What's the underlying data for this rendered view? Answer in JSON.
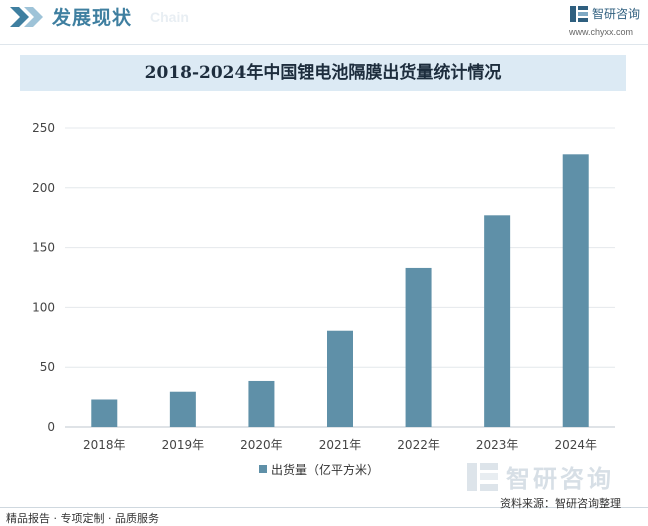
{
  "header": {
    "title": "发展现状",
    "subtitle": "Chain",
    "brand_name": "智研咨询",
    "brand_url": "www.chyxx.com"
  },
  "watermark": {
    "text": "智研咨询"
  },
  "footer": {
    "left_text": "精品报告 · 专项定制 · 品质服务",
    "source_text": "资料来源：智研咨询整理"
  },
  "colors": {
    "bar": "#5f90a8",
    "accent": "#3f7fa0",
    "title_bg": "#dceaf4"
  },
  "chart_data": {
    "type": "bar",
    "title": "2018-2024年中国锂电池隔膜出货量统计情况",
    "categories": [
      "2018年",
      "2019年",
      "2020年",
      "2021年",
      "2022年",
      "2023年",
      "2024年"
    ],
    "series": [
      {
        "name": "出货量（亿平方米）",
        "values": [
          23,
          29.5,
          38.5,
          80.5,
          133,
          177,
          228
        ]
      }
    ],
    "ylim": [
      0,
      250
    ],
    "yticks": [
      0,
      50,
      100,
      150,
      200,
      250
    ],
    "xlabel": "",
    "ylabel": "",
    "grid": true,
    "legend": "bottom"
  }
}
